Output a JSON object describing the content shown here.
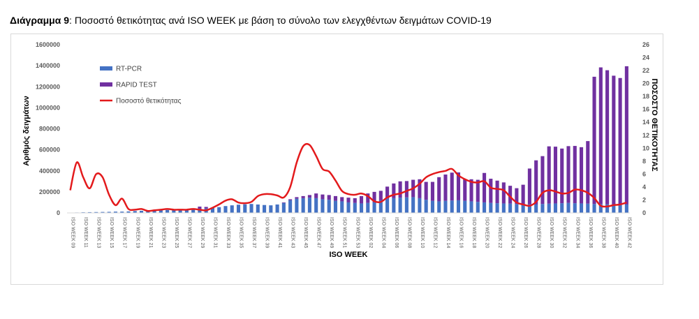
{
  "caption": {
    "label": "Διάγραμμα 9",
    "separator": ": ",
    "text": "Ποσοστό θετικότητας ανά ISO WEEK με βάση το σύνολο των ελεγχθέντων δειγμάτων COVID-19"
  },
  "colors": {
    "rtpcr": "#4472c4",
    "rapid": "#7030a0",
    "positivity": "#e31a1c"
  },
  "chart_data": {
    "type": "bar",
    "stacked": true,
    "xlabel": "ISO WEEK",
    "ylabel": "Αριθμός δειγμάτων",
    "y2label": "ΠΟΣΟΣΤΟ ΘΕΤΙΚΟΤΗΤΑΣ",
    "ylim": [
      0,
      1600000
    ],
    "y2lim": [
      0,
      26
    ],
    "yticks": [
      "0",
      "200000",
      "400000",
      "600000",
      "800000",
      "1000000",
      "1200000",
      "1400000",
      "1600000"
    ],
    "y2ticks": [
      "0",
      "2",
      "4",
      "6",
      "8",
      "10",
      "12",
      "14",
      "16",
      "18",
      "20",
      "22",
      "24",
      "26"
    ],
    "legend_position": "top-left",
    "categories": [
      "ISO WEEK 09",
      "ISO WEEK 10",
      "ISO WEEK 11",
      "ISO WEEK 12",
      "ISO WEEK 13",
      "ISO WEEK 14",
      "ISO WEEK 15",
      "ISO WEEK 16",
      "ISO WEEK 17",
      "ISO WEEK 18",
      "ISO WEEK 19",
      "ISO WEEK 20",
      "ISO WEEK 21",
      "ISO WEEK 22",
      "ISO WEEK 23",
      "ISO WEEK 24",
      "ISO WEEK 25",
      "ISO WEEK 26",
      "ISO WEEK 27",
      "ISO WEEK 28",
      "ISO WEEK 29",
      "ISO WEEK 30",
      "ISO WEEK 31",
      "ISO WEEK 32",
      "ISO WEEK 33",
      "ISO WEEK 34",
      "ISO WEEK 35",
      "ISO WEEK 36",
      "ISO WEEK 37",
      "ISO WEEK 38",
      "ISO WEEK 39",
      "ISO WEEK 40",
      "ISO WEEK 41",
      "ISO WEEK 42",
      "ISO WEEK 43",
      "ISO WEEK 44",
      "ISO WEEK 45",
      "ISO WEEK 46",
      "ISO WEEK 47",
      "ISO WEEK 48",
      "ISO WEEK 49",
      "ISO WEEK 50",
      "ISO WEEK 51",
      "ISO WEEK 52",
      "ISO WEEK 53",
      "ISO WEEK 01",
      "ISO WEEK 02",
      "ISO WEEK 03",
      "ISO WEEK 04",
      "ISO WEEK 05",
      "ISO WEEK 06",
      "ISO WEEK 07",
      "ISO WEEK 08",
      "ISO WEEK 09",
      "ISO WEEK 10",
      "ISO WEEK 11",
      "ISO WEEK 12",
      "ISO WEEK 13",
      "ISO WEEK 14",
      "ISO WEEK 15",
      "ISO WEEK 16",
      "ISO WEEK 17",
      "ISO WEEK 18",
      "ISO WEEK 19",
      "ISO WEEK 20",
      "ISO WEEK 21",
      "ISO WEEK 22",
      "ISO WEEK 23",
      "ISO WEEK 24",
      "ISO WEEK 25",
      "ISO WEEK 26",
      "ISO WEEK 27",
      "ISO WEEK 28",
      "ISO WEEK 29",
      "ISO WEEK 30",
      "ISO WEEK 31",
      "ISO WEEK 32",
      "ISO WEEK 33",
      "ISO WEEK 34",
      "ISO WEEK 35",
      "ISO WEEK 36",
      "ISO WEEK 37",
      "ISO WEEK 38",
      "ISO WEEK 39",
      "ISO WEEK 40",
      "ISO WEEK 41",
      "ISO WEEK 42"
    ],
    "tick_every": 2,
    "series": [
      {
        "name": "RT-PCR",
        "kind": "bar",
        "values": [
          2000,
          4000,
          6000,
          7000,
          8000,
          9000,
          10000,
          12000,
          12000,
          14000,
          18000,
          20000,
          25000,
          25000,
          28000,
          28000,
          30000,
          30000,
          32000,
          34000,
          40000,
          42000,
          48000,
          55000,
          65000,
          72000,
          78000,
          82000,
          85000,
          80000,
          75000,
          72000,
          80000,
          95000,
          120000,
          135000,
          140000,
          145000,
          140000,
          130000,
          125000,
          115000,
          110000,
          100000,
          95000,
          90000,
          95000,
          100000,
          120000,
          135000,
          140000,
          145000,
          148000,
          150000,
          140000,
          125000,
          115000,
          110000,
          115000,
          118000,
          120000,
          115000,
          110000,
          105000,
          100000,
          95000,
          92000,
          90000,
          88000,
          85000,
          83000,
          82000,
          80000,
          85000,
          88000,
          90000,
          92000,
          95000,
          92000,
          90000,
          88000,
          85000,
          84000,
          82000,
          80000,
          78000,
          80000
        ]
      },
      {
        "name": "RAPID TEST",
        "kind": "bar",
        "values": [
          0,
          0,
          0,
          0,
          0,
          0,
          0,
          0,
          0,
          0,
          0,
          0,
          0,
          0,
          0,
          0,
          0,
          0,
          0,
          0,
          20000,
          15000,
          0,
          0,
          0,
          0,
          0,
          0,
          0,
          0,
          0,
          0,
          0,
          5000,
          10000,
          15000,
          20000,
          25000,
          45000,
          45000,
          45000,
          45000,
          40000,
          45000,
          45000,
          70000,
          90000,
          100000,
          90000,
          115000,
          140000,
          155000,
          155000,
          165000,
          180000,
          170000,
          180000,
          230000,
          250000,
          265000,
          265000,
          205000,
          210000,
          210000,
          280000,
          230000,
          215000,
          200000,
          170000,
          150000,
          185000,
          340000,
          420000,
          455000,
          545000,
          540000,
          520000,
          540000,
          545000,
          535000,
          595000,
          1210000,
          1300000,
          1275000,
          1225000,
          1205000,
          1315000
        ]
      },
      {
        "name": "Ποσοστό θετικότητας",
        "kind": "line",
        "axis": "right",
        "values": [
          3.5,
          7.8,
          5.5,
          3.8,
          6.0,
          5.5,
          2.8,
          1.2,
          2.2,
          0.6,
          0.5,
          0.6,
          0.3,
          0.4,
          0.5,
          0.6,
          0.5,
          0.5,
          0.5,
          0.6,
          0.5,
          0.4,
          0.8,
          1.3,
          1.9,
          2.1,
          1.6,
          1.5,
          1.7,
          2.6,
          2.9,
          2.9,
          2.7,
          2.4,
          4.0,
          7.8,
          10.3,
          10.5,
          8.8,
          6.8,
          6.4,
          5.0,
          3.4,
          2.9,
          2.8,
          3.0,
          2.6,
          1.8,
          1.7,
          2.4,
          2.8,
          3.0,
          3.4,
          3.8,
          4.5,
          5.5,
          6.0,
          6.3,
          6.5,
          6.8,
          5.8,
          5.2,
          4.8,
          4.7,
          4.9,
          3.9,
          3.7,
          3.5,
          2.5,
          1.6,
          1.3,
          1.1,
          1.7,
          3.1,
          3.5,
          3.3,
          3.0,
          3.1,
          3.6,
          3.5,
          3.1,
          2.3,
          1.1,
          1.0,
          1.2,
          1.3,
          1.6
        ]
      }
    ]
  }
}
